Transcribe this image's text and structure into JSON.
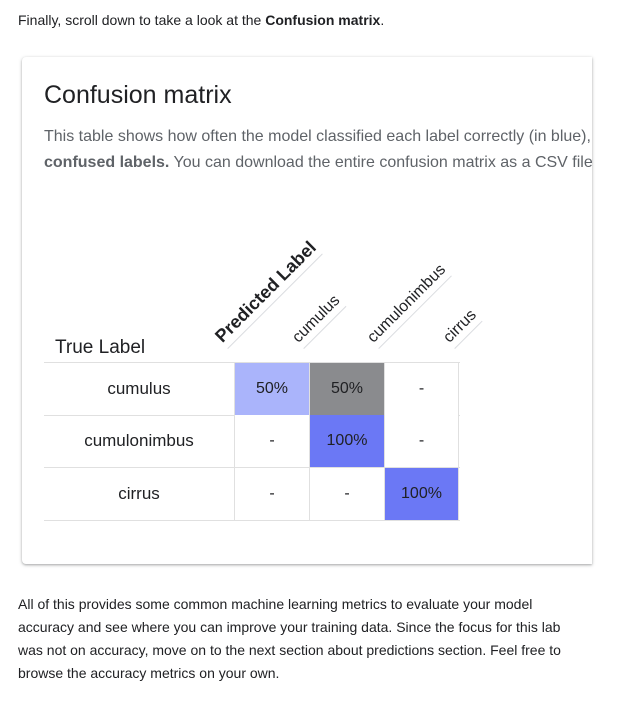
{
  "intro": {
    "prefix": "Finally, scroll down to take a look at the ",
    "bold": "Confusion matrix",
    "suffix": "."
  },
  "card": {
    "title": "Confusion matrix",
    "description_line1": "This table shows how often the model classified each label correctly (in blue), and which labels were most often confused for that label (in gray). Looking at this data can help you identify",
    "description_bold": "confused labels.",
    "description_line2_rest": " You can download the entire confusion matrix as a CSV file."
  },
  "matrix": {
    "true_label_header": "True Label",
    "predicted_label_header": "Predicted Label",
    "columns": [
      "cumulus",
      "cumulonimbus",
      "cirrus"
    ],
    "rows": [
      {
        "label": "cumulus",
        "cells": [
          "50%",
          "50%",
          "-"
        ]
      },
      {
        "label": "cumulonimbus",
        "cells": [
          "-",
          "100%",
          "-"
        ]
      },
      {
        "label": "cirrus",
        "cells": [
          "-",
          "-",
          "100%"
        ]
      }
    ],
    "cell_colors": [
      [
        "#aab4fb",
        "#8a8b8e",
        "#ffffff"
      ],
      [
        "#ffffff",
        "#6b78f5",
        "#ffffff"
      ],
      [
        "#ffffff",
        "#ffffff",
        "#6b78f5"
      ]
    ]
  },
  "outro": {
    "text": "All of this provides some common machine learning metrics to evaluate your model accuracy and see where you can improve your training data. Since the focus for this lab was not on accuracy, move on to the next section about predictions section. Feel free to browse the accuracy metrics on your own."
  }
}
